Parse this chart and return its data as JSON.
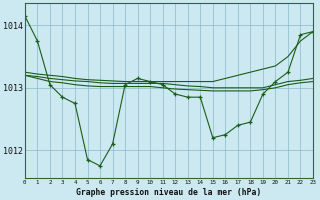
{
  "title": "Graphe pression niveau de la mer (hPa)",
  "background_color": "#cce8f0",
  "grid_color": "#88bbcc",
  "line_color": "#1a5c1a",
  "xlim": [
    0,
    23
  ],
  "ylim": [
    1011.55,
    1014.35
  ],
  "yticks": [
    1012,
    1013,
    1014
  ],
  "xticks": [
    0,
    1,
    2,
    3,
    4,
    5,
    6,
    7,
    8,
    9,
    10,
    11,
    12,
    13,
    14,
    15,
    16,
    17,
    18,
    19,
    20,
    21,
    22,
    23
  ],
  "series": {
    "instant": [
      1014.15,
      1013.75,
      1013.05,
      1012.85,
      1012.75,
      1011.85,
      1011.75,
      1012.1,
      1013.05,
      1013.15,
      1013.1,
      1013.05,
      1012.9,
      1012.85,
      1012.85,
      1012.2,
      1012.25,
      1012.4,
      1012.45,
      1012.9,
      1013.1,
      1013.25,
      1013.85,
      1013.9
    ],
    "smooth_upper": [
      1013.25,
      1013.22,
      1013.2,
      1013.18,
      1013.15,
      1013.13,
      1013.12,
      1013.11,
      1013.1,
      1013.1,
      1013.1,
      1013.1,
      1013.1,
      1013.1,
      1013.1,
      1013.1,
      1013.15,
      1013.2,
      1013.25,
      1013.3,
      1013.35,
      1013.5,
      1013.75,
      1013.9
    ],
    "smooth_mid": [
      1013.2,
      1013.18,
      1013.15,
      1013.13,
      1013.11,
      1013.1,
      1013.08,
      1013.07,
      1013.07,
      1013.07,
      1013.07,
      1013.07,
      1013.05,
      1013.03,
      1013.02,
      1013.0,
      1013.0,
      1013.0,
      1013.0,
      1013.0,
      1013.05,
      1013.1,
      1013.12,
      1013.15
    ],
    "smooth_lower": [
      1013.2,
      1013.15,
      1013.1,
      1013.08,
      1013.05,
      1013.03,
      1013.02,
      1013.02,
      1013.02,
      1013.02,
      1013.02,
      1013.0,
      1012.98,
      1012.97,
      1012.96,
      1012.95,
      1012.95,
      1012.95,
      1012.95,
      1012.97,
      1013.0,
      1013.05,
      1013.08,
      1013.1
    ]
  }
}
